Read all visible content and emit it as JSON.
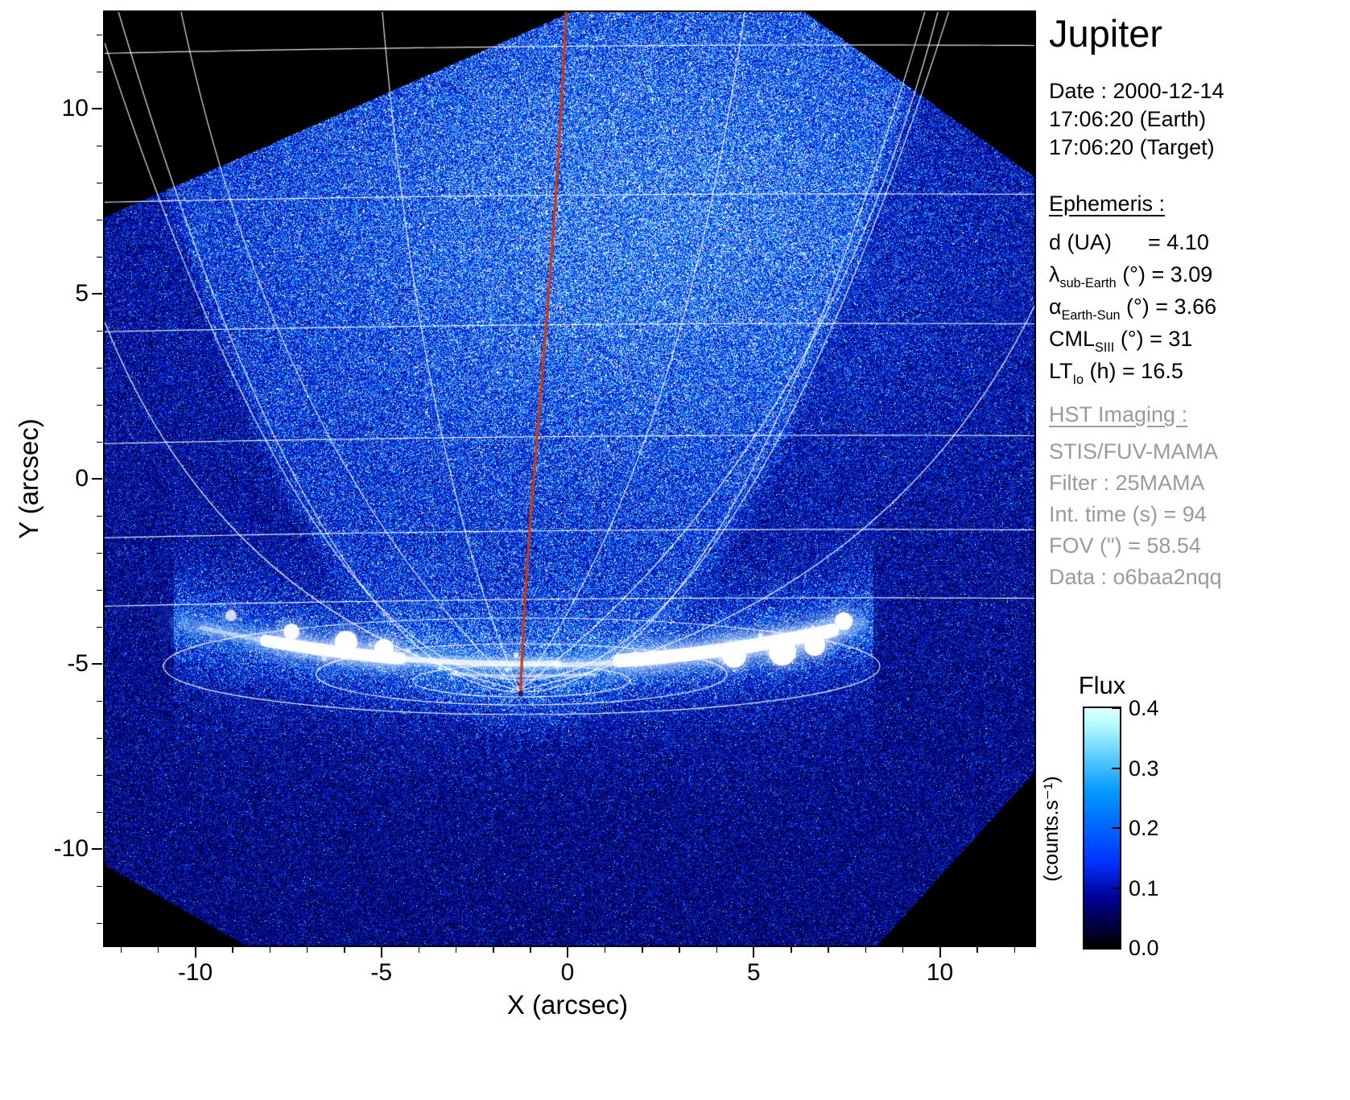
{
  "title": "Jupiter",
  "header": {
    "date_line": "Date : 2000-12-14",
    "time_earth": "17:06:20 (Earth)",
    "time_target": "17:06:20 (Target)"
  },
  "ephemeris": {
    "heading": "Ephemeris :",
    "rows": [
      [
        [
          "d (UA)      = 4.10",
          0
        ]
      ],
      [
        [
          "λ",
          0
        ],
        [
          "sub-Earth",
          1
        ],
        [
          " (°) = 3.09",
          0
        ]
      ],
      [
        [
          "α",
          0
        ],
        [
          "Earth-Sun",
          1
        ],
        [
          " (°) = 3.66",
          0
        ]
      ],
      [
        [
          "CML",
          0
        ],
        [
          "SIII",
          1
        ],
        [
          " (°) = 31",
          0
        ]
      ],
      [
        [
          "LT",
          0
        ],
        [
          "Io",
          1
        ],
        [
          " (h) = 16.5",
          0
        ]
      ]
    ]
  },
  "hst": {
    "heading": "HST Imaging :",
    "lines": [
      "STIS/FUV-MAMA",
      "Filter : 25MAMA",
      "Int. time (s) = 94",
      "FOV (\") = 58.54",
      "Data : o6baa2nqq"
    ]
  },
  "axes": {
    "xlabel": "X (arcsec)",
    "ylabel": "Y (arcsec)"
  },
  "colorbar": {
    "title": "Flux",
    "unit": "(counts.s⁻¹)",
    "ticks": [
      "0.4",
      "0.3",
      "0.2",
      "0.1",
      "0.0"
    ]
  },
  "chart_data": {
    "type": "heatmap",
    "description": "HST/STIS far-UV image of Jupiter showing auroral emission near the limb, with white planetary graticule, white limb curves and red central meridian overlay on a blue log-like flux colormap",
    "title": "Jupiter",
    "xlabel": "X (arcsec)",
    "ylabel": "Y (arcsec)",
    "xlim": [
      -12.5,
      12.5
    ],
    "ylim": [
      -12.5,
      12.5
    ],
    "xticks": [
      -10,
      -5,
      0,
      5,
      10
    ],
    "yticks": [
      10,
      5,
      0,
      -5,
      -10
    ],
    "colorbar": {
      "label": "Flux",
      "unit": "counts.s⁻¹",
      "min": 0.0,
      "max": 0.4,
      "ticks": [
        0.0,
        0.1,
        0.2,
        0.3,
        0.4
      ]
    },
    "ephemeris": {
      "d_UA": 4.1,
      "lambda_subEarth_deg": 3.09,
      "alpha_EarthSun_deg": 3.66,
      "CML_SIII_deg": 31,
      "LT_Io_h": 16.5
    },
    "observation": {
      "target": "Jupiter",
      "date": "2000-12-14",
      "time_earth": "17:06:20",
      "time_target": "17:06:20",
      "instrument": "STIS/FUV-MAMA",
      "filter": "25MAMA",
      "int_time_s": 94,
      "fov_arcsec": 58.54,
      "dataset": "o6baa2nqq"
    },
    "overlays": [
      "planetocentric graticule (white)",
      "planetary limb curves (white)",
      "central meridian (red) ending at limb near (-1.3, -5.7)"
    ],
    "features": [
      {
        "name": "auroral main oval emission",
        "x_arcsec": [
          -9.5,
          8.0
        ],
        "y_arcsec": [
          -5.3,
          -3.8
        ],
        "flux": "saturated, >= 0.4"
      },
      {
        "name": "bright round spot at eastern end of oval",
        "x_arcsec": 7.4,
        "y_arcsec": -3.9
      },
      {
        "name": "faint spot at western end of oval",
        "x_arcsec": -9.0,
        "y_arcsec": -3.7
      },
      {
        "name": "disk dayglow background",
        "flux_typical": 0.15
      },
      {
        "name": "off-disk sky below limb",
        "flux_typical": 0.05
      },
      {
        "name": "rotated detector field of view",
        "note": "black corners outside rotated square FOV"
      }
    ]
  }
}
